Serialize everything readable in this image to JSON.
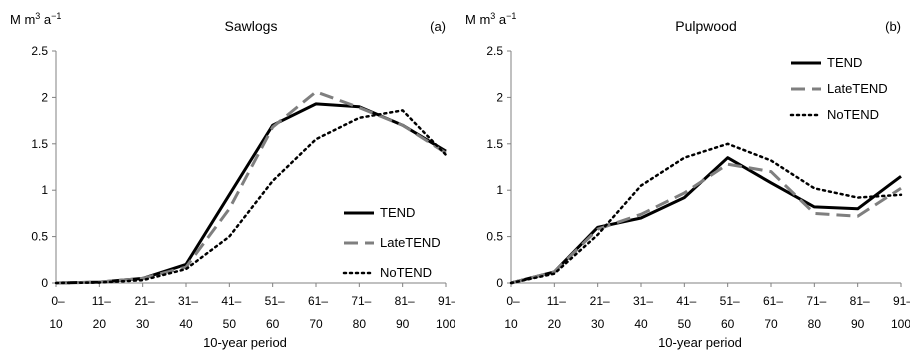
{
  "chart_data": [
    {
      "type": "line",
      "title": "Sawlogs",
      "panel_label": "(a)",
      "ylabel": "M m³ a⁻¹",
      "ylabel_parts": [
        "M m",
        "3",
        " a",
        "−1"
      ],
      "xlabel": "10-year period",
      "ylim": [
        0,
        2.5
      ],
      "yticks": [
        "0",
        "0.5",
        "1",
        "1.5",
        "2",
        "2.5"
      ],
      "categories": [
        [
          "0–",
          "10"
        ],
        [
          "11–",
          "20"
        ],
        [
          "21–",
          "30"
        ],
        [
          "31–",
          "40"
        ],
        [
          "41–",
          "50"
        ],
        [
          "51–",
          "60"
        ],
        [
          "61–",
          "70"
        ],
        [
          "71–",
          "80"
        ],
        [
          "81–",
          "90"
        ],
        [
          "91–",
          "100"
        ]
      ],
      "legend_position": "bottom-right",
      "series": [
        {
          "name": "TEND",
          "style": "solid",
          "color": "#000000",
          "values": [
            0,
            0.01,
            0.05,
            0.2,
            0.95,
            1.7,
            1.93,
            1.9,
            1.7,
            1.42
          ]
        },
        {
          "name": "LateTEND",
          "style": "dashed",
          "color": "#7f7f7f",
          "values": [
            0,
            0.01,
            0.05,
            0.17,
            0.8,
            1.68,
            2.06,
            1.89,
            1.7,
            1.4
          ]
        },
        {
          "name": "NoTEND",
          "style": "dotted",
          "color": "#000000",
          "values": [
            0,
            0.005,
            0.03,
            0.15,
            0.5,
            1.1,
            1.55,
            1.78,
            1.86,
            1.38
          ]
        }
      ]
    },
    {
      "type": "line",
      "title": "Pulpwood",
      "panel_label": "(b)",
      "ylabel": "M m³ a⁻¹",
      "ylabel_parts": [
        "M m",
        "3",
        " a",
        "−1"
      ],
      "xlabel": "10-year period",
      "ylim": [
        0,
        2.5
      ],
      "yticks": [
        "0",
        "0.5",
        "1",
        "1.5",
        "2",
        "2.5"
      ],
      "categories": [
        [
          "0–",
          "10"
        ],
        [
          "11–",
          "20"
        ],
        [
          "21–",
          "30"
        ],
        [
          "31–",
          "40"
        ],
        [
          "41–",
          "50"
        ],
        [
          "51–",
          "60"
        ],
        [
          "61–",
          "70"
        ],
        [
          "71–",
          "80"
        ],
        [
          "81–",
          "90"
        ],
        [
          "91–",
          "100"
        ]
      ],
      "legend_position": "top-right",
      "series": [
        {
          "name": "TEND",
          "style": "solid",
          "color": "#000000",
          "values": [
            0,
            0.12,
            0.6,
            0.7,
            0.92,
            1.35,
            1.08,
            0.82,
            0.8,
            1.15
          ]
        },
        {
          "name": "LateTEND",
          "style": "dashed",
          "color": "#7f7f7f",
          "values": [
            0,
            0.12,
            0.58,
            0.74,
            0.97,
            1.28,
            1.2,
            0.75,
            0.72,
            1.02
          ]
        },
        {
          "name": "NoTEND",
          "style": "dotted",
          "color": "#000000",
          "values": [
            0,
            0.1,
            0.52,
            1.05,
            1.35,
            1.5,
            1.32,
            1.02,
            0.92,
            0.95
          ]
        }
      ]
    }
  ]
}
